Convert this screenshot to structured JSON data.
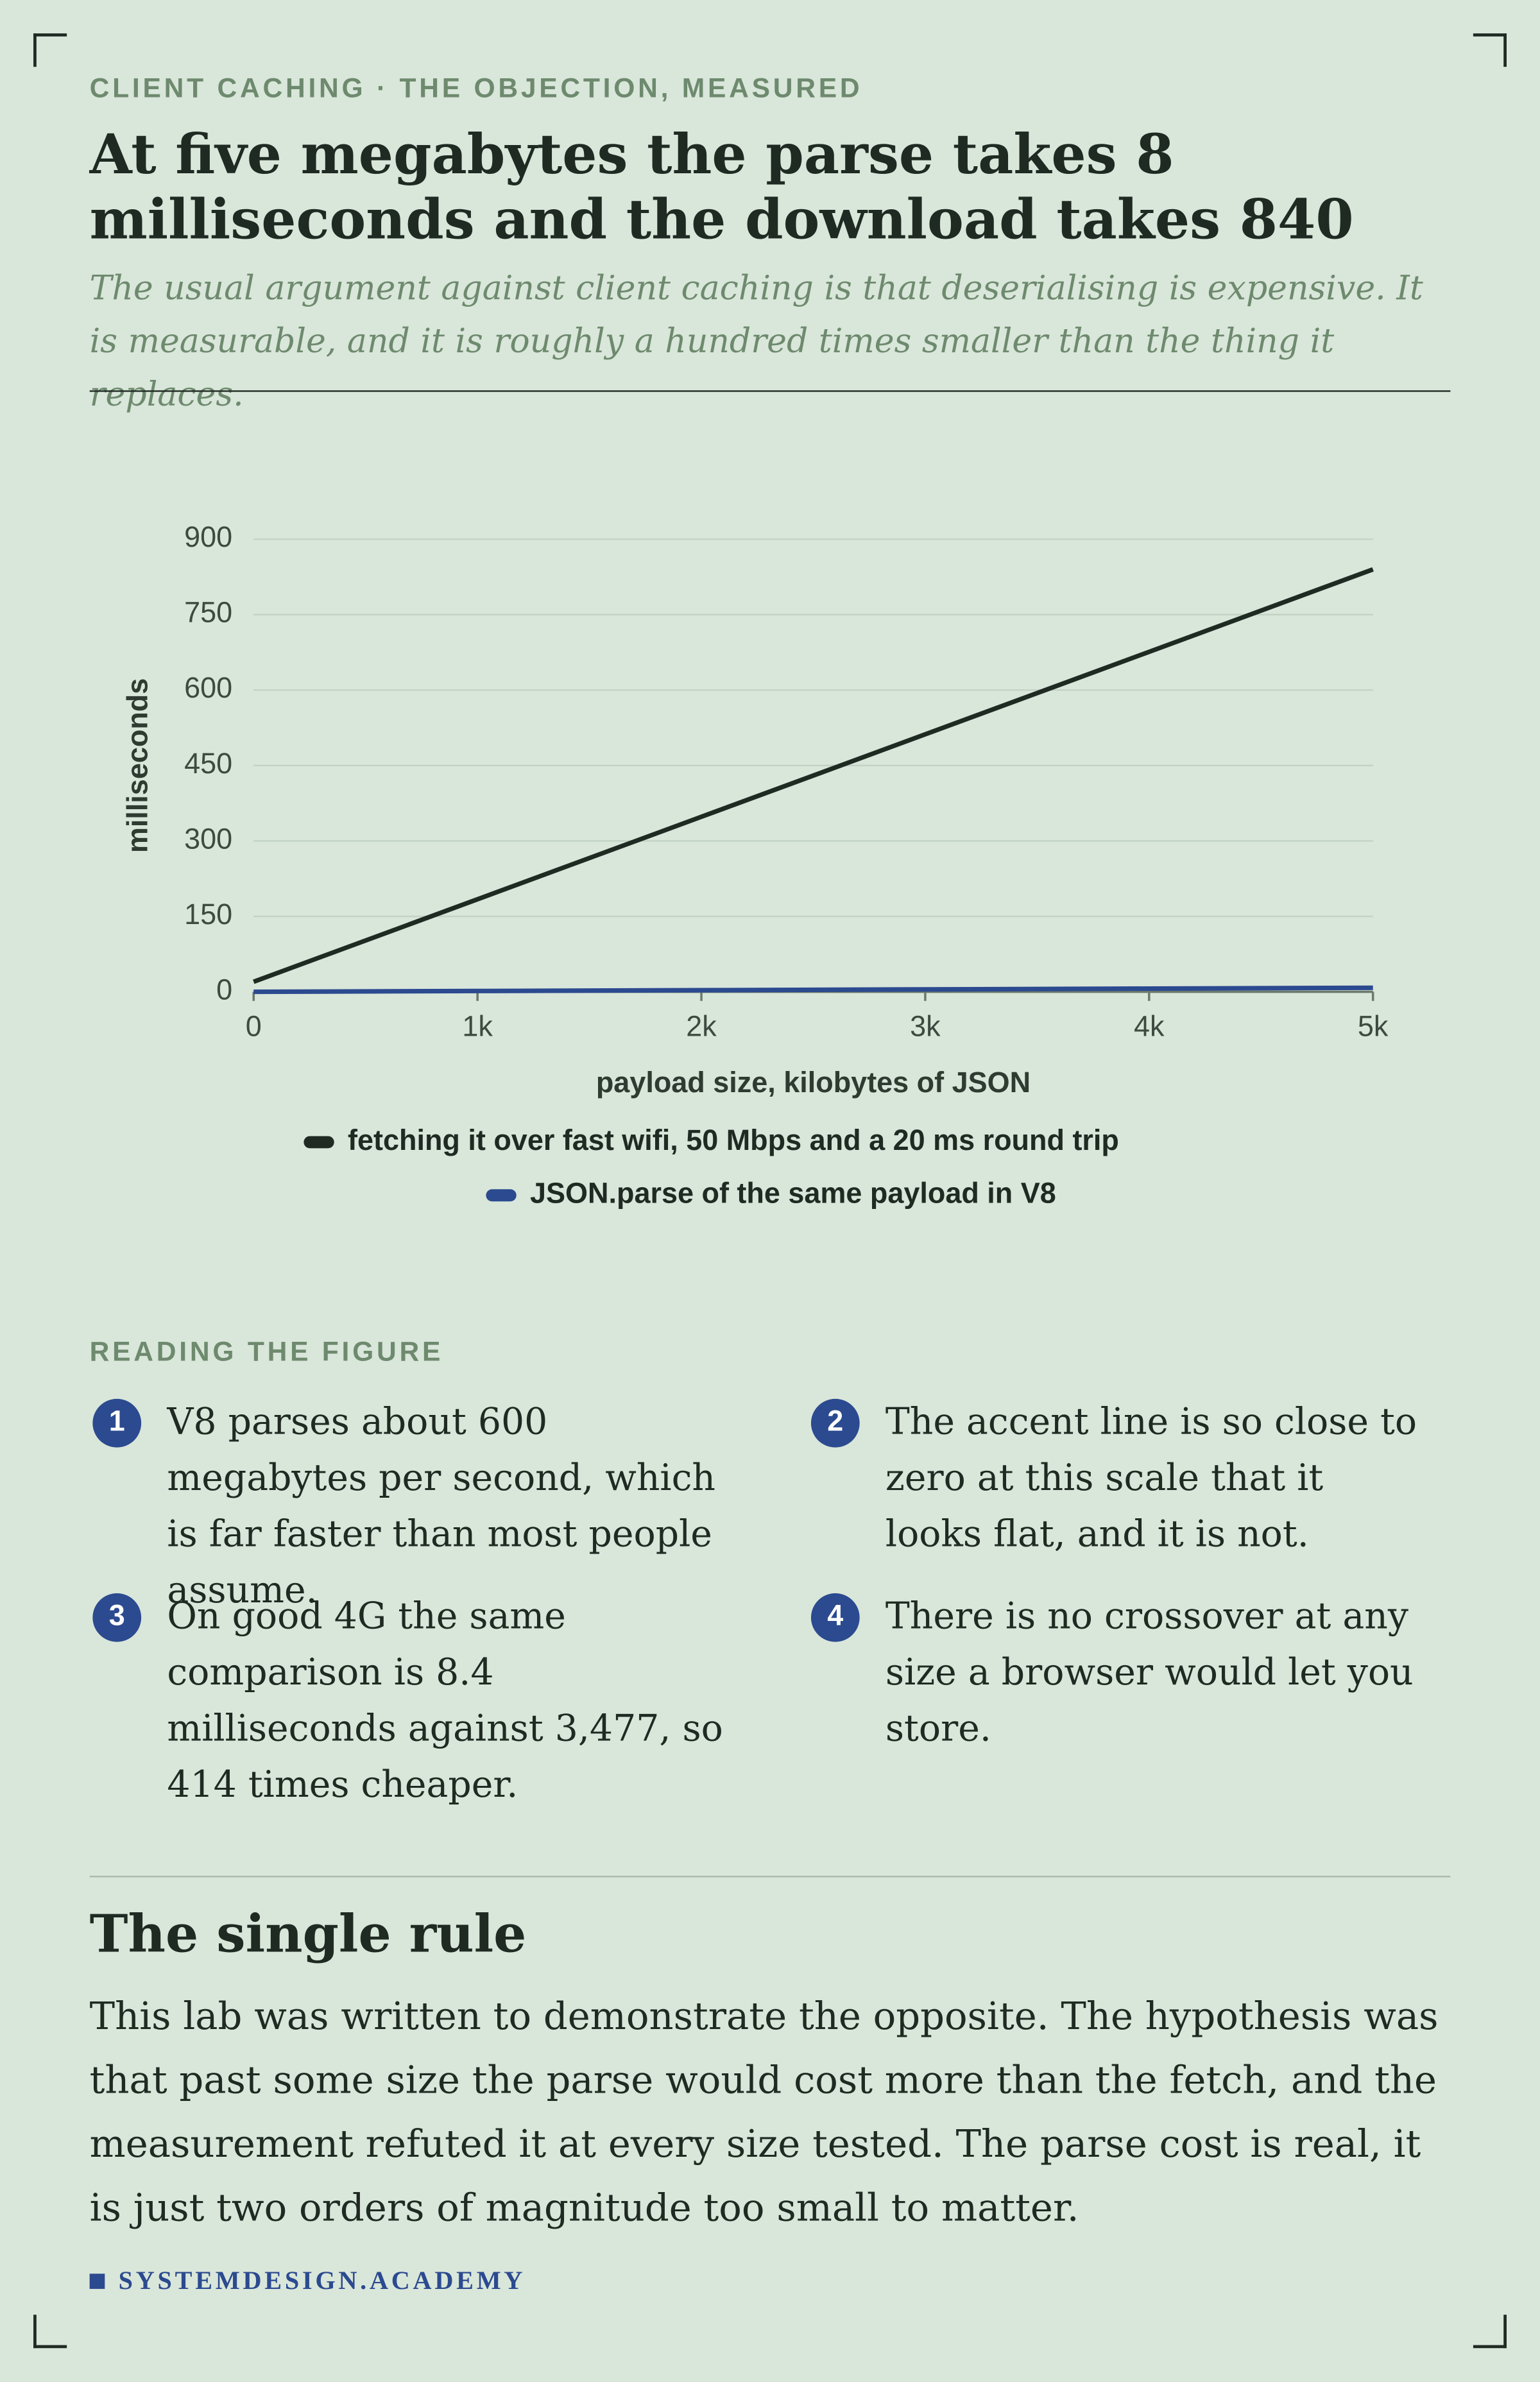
{
  "header": {
    "eyebrow": "CLIENT CACHING · THE OBJECTION, MEASURED",
    "title": "At five megabytes the parse takes 8 milliseconds and the download takes 840",
    "subtitle": "The usual argument against client caching is that deserialising is expensive. It is measurable, and it is roughly a hundred times smaller than the thing it replaces."
  },
  "chart_data": {
    "type": "line",
    "x": [
      0,
      1000,
      2000,
      3000,
      4000,
      5000
    ],
    "series": [
      {
        "name": "fetching it over fast wifi, 50 Mbps and a 20 ms round trip",
        "color": "#1f2a22",
        "values": [
          20,
          184,
          348,
          512,
          676,
          840
        ]
      },
      {
        "name": "JSON.parse of the same payload in V8",
        "color": "#2b4a8f",
        "values": [
          0,
          1.6,
          3.2,
          4.8,
          6.4,
          8
        ]
      }
    ],
    "xlabel": "payload size, kilobytes of JSON",
    "ylabel": "milliseconds",
    "xlim": [
      0,
      5000
    ],
    "xticks": [
      0,
      {
        "value": 1000,
        "label": "1k"
      },
      {
        "value": 2000,
        "label": "2k"
      },
      {
        "value": 3000,
        "label": "3k"
      },
      {
        "value": 4000,
        "label": "4k"
      },
      {
        "value": 5000,
        "label": "5k"
      }
    ],
    "ylim": [
      0,
      900
    ],
    "yticks": [
      0,
      150,
      300,
      450,
      600,
      750,
      900
    ],
    "grid": true,
    "legend": "bottom"
  },
  "notes": {
    "heading": "READING THE FIGURE",
    "items": [
      {
        "number": "1",
        "text": "V8 parses about 600 megabytes per second, which is far faster than most people assume."
      },
      {
        "number": "2",
        "text": "The accent line is so close to zero at this scale that it looks flat, and it is not."
      },
      {
        "number": "3",
        "text": "On good 4G the same comparison is 8.4 milliseconds against 3,477, so 414 times cheaper."
      },
      {
        "number": "4",
        "text": "There is no crossover at any size a browser would let you store."
      }
    ]
  },
  "rule": {
    "heading": "The single rule",
    "text": "This lab was written to demonstrate the opposite. The hypothesis was that past some size the parse would cost more than the fetch, and the measurement refuted it at every size tested. The parse cost is real, it is just two orders of magnitude too small to matter."
  },
  "footer": "SYSTEMDESIGN.ACADEMY"
}
